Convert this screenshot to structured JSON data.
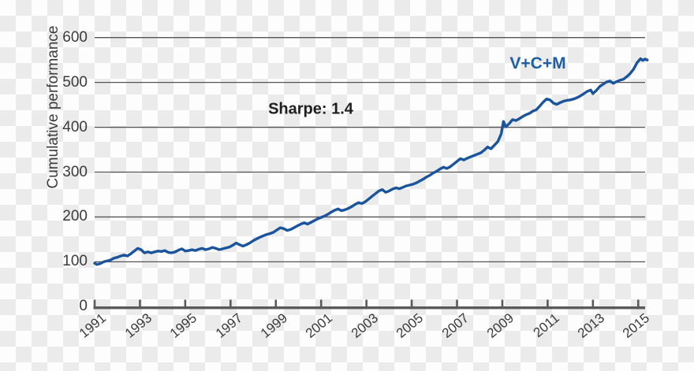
{
  "figure": {
    "ylabel": "Cumulative performance",
    "annotation": "Sharpe: 1.4",
    "series_label": "V+C+M"
  },
  "colors": {
    "line": "#1a549c",
    "series_label": "#1c5ea8",
    "grid": "#545454",
    "axis": "#5a5a5a",
    "text": "#3a3a3a",
    "checker_light": "#fdfdfd",
    "checker_gray": "#ebebeb"
  },
  "chart_data": {
    "type": "line",
    "title": "",
    "xlabel": "",
    "ylabel": "Cumulative performance",
    "annotation": {
      "text": "Sharpe: 1.4"
    },
    "legend_position": "top-right-inside",
    "grid": "horizontal-only",
    "xlim": [
      1991,
      2015.45
    ],
    "ylim": [
      0,
      600
    ],
    "x_ticks": [
      "1991",
      "1993",
      "1995",
      "1997",
      "1999",
      "2001",
      "2003",
      "2005",
      "2007",
      "2009",
      "2011",
      "2013",
      "2015"
    ],
    "x_tick_years": [
      1991,
      1993,
      1995,
      1997,
      1999,
      2001,
      2003,
      2005,
      2007,
      2009,
      2011,
      2013,
      2015
    ],
    "y_ticks": [
      "0",
      "100",
      "200",
      "300",
      "400",
      "500",
      "600"
    ],
    "y_tick_values": [
      0,
      100,
      200,
      300,
      400,
      500,
      600
    ],
    "gridline_values": [
      100,
      200,
      300,
      400,
      500,
      600
    ],
    "series": [
      {
        "name": "V+C+M",
        "color": "#1a549c",
        "points": [
          [
            1991.0,
            97
          ],
          [
            1991.1,
            94
          ],
          [
            1991.25,
            96
          ],
          [
            1991.4,
            100
          ],
          [
            1991.55,
            102
          ],
          [
            1991.7,
            104
          ],
          [
            1991.85,
            108
          ],
          [
            1992.0,
            110
          ],
          [
            1992.15,
            113
          ],
          [
            1992.3,
            115
          ],
          [
            1992.45,
            113
          ],
          [
            1992.6,
            118
          ],
          [
            1992.75,
            124
          ],
          [
            1992.9,
            130
          ],
          [
            1993.05,
            127
          ],
          [
            1993.2,
            120
          ],
          [
            1993.35,
            122
          ],
          [
            1993.5,
            120
          ],
          [
            1993.65,
            122
          ],
          [
            1993.8,
            124
          ],
          [
            1993.95,
            123
          ],
          [
            1994.1,
            125
          ],
          [
            1994.25,
            121
          ],
          [
            1994.4,
            120
          ],
          [
            1994.55,
            122
          ],
          [
            1994.7,
            126
          ],
          [
            1994.85,
            129
          ],
          [
            1995.0,
            124
          ],
          [
            1995.15,
            125
          ],
          [
            1995.3,
            127
          ],
          [
            1995.45,
            125
          ],
          [
            1995.6,
            128
          ],
          [
            1995.75,
            130
          ],
          [
            1995.9,
            127
          ],
          [
            1996.05,
            129
          ],
          [
            1996.2,
            132
          ],
          [
            1996.35,
            130
          ],
          [
            1996.5,
            127
          ],
          [
            1996.65,
            129
          ],
          [
            1996.8,
            131
          ],
          [
            1996.95,
            133
          ],
          [
            1997.1,
            137
          ],
          [
            1997.25,
            142
          ],
          [
            1997.4,
            138
          ],
          [
            1997.55,
            135
          ],
          [
            1997.7,
            138
          ],
          [
            1997.85,
            142
          ],
          [
            1998.0,
            147
          ],
          [
            1998.15,
            151
          ],
          [
            1998.3,
            155
          ],
          [
            1998.45,
            158
          ],
          [
            1998.6,
            161
          ],
          [
            1998.75,
            163
          ],
          [
            1998.9,
            166
          ],
          [
            1999.05,
            171
          ],
          [
            1999.2,
            176
          ],
          [
            1999.35,
            174
          ],
          [
            1999.5,
            170
          ],
          [
            1999.65,
            172
          ],
          [
            1999.8,
            176
          ],
          [
            1999.95,
            180
          ],
          [
            2000.1,
            184
          ],
          [
            2000.25,
            187
          ],
          [
            2000.4,
            184
          ],
          [
            2000.55,
            188
          ],
          [
            2000.7,
            192
          ],
          [
            2000.85,
            196
          ],
          [
            2001.0,
            199
          ],
          [
            2001.15,
            202
          ],
          [
            2001.3,
            206
          ],
          [
            2001.45,
            211
          ],
          [
            2001.6,
            215
          ],
          [
            2001.75,
            218
          ],
          [
            2001.9,
            214
          ],
          [
            2002.05,
            216
          ],
          [
            2002.2,
            219
          ],
          [
            2002.35,
            223
          ],
          [
            2002.5,
            228
          ],
          [
            2002.65,
            232
          ],
          [
            2002.8,
            230
          ],
          [
            2002.95,
            234
          ],
          [
            2003.1,
            240
          ],
          [
            2003.25,
            246
          ],
          [
            2003.4,
            252
          ],
          [
            2003.55,
            258
          ],
          [
            2003.7,
            261
          ],
          [
            2003.85,
            255
          ],
          [
            2004.0,
            258
          ],
          [
            2004.15,
            262
          ],
          [
            2004.3,
            265
          ],
          [
            2004.45,
            263
          ],
          [
            2004.6,
            266
          ],
          [
            2004.75,
            269
          ],
          [
            2004.9,
            271
          ],
          [
            2005.05,
            273
          ],
          [
            2005.2,
            276
          ],
          [
            2005.35,
            280
          ],
          [
            2005.5,
            284
          ],
          [
            2005.65,
            289
          ],
          [
            2005.8,
            293
          ],
          [
            2005.95,
            298
          ],
          [
            2006.1,
            302
          ],
          [
            2006.25,
            307
          ],
          [
            2006.4,
            311
          ],
          [
            2006.55,
            308
          ],
          [
            2006.7,
            312
          ],
          [
            2006.85,
            318
          ],
          [
            2007.0,
            324
          ],
          [
            2007.15,
            330
          ],
          [
            2007.3,
            327
          ],
          [
            2007.45,
            331
          ],
          [
            2007.6,
            334
          ],
          [
            2007.75,
            337
          ],
          [
            2007.9,
            340
          ],
          [
            2008.05,
            343
          ],
          [
            2008.2,
            349
          ],
          [
            2008.35,
            356
          ],
          [
            2008.5,
            352
          ],
          [
            2008.65,
            360
          ],
          [
            2008.8,
            368
          ],
          [
            2008.95,
            385
          ],
          [
            2009.05,
            413
          ],
          [
            2009.15,
            401
          ],
          [
            2009.3,
            408
          ],
          [
            2009.45,
            417
          ],
          [
            2009.6,
            415
          ],
          [
            2009.75,
            419
          ],
          [
            2009.9,
            424
          ],
          [
            2010.05,
            428
          ],
          [
            2010.2,
            431
          ],
          [
            2010.35,
            436
          ],
          [
            2010.5,
            439
          ],
          [
            2010.65,
            447
          ],
          [
            2010.8,
            456
          ],
          [
            2010.95,
            463
          ],
          [
            2011.1,
            461
          ],
          [
            2011.25,
            454
          ],
          [
            2011.4,
            451
          ],
          [
            2011.55,
            455
          ],
          [
            2011.7,
            458
          ],
          [
            2011.85,
            460
          ],
          [
            2012.0,
            461
          ],
          [
            2012.15,
            463
          ],
          [
            2012.3,
            466
          ],
          [
            2012.45,
            470
          ],
          [
            2012.6,
            475
          ],
          [
            2012.75,
            480
          ],
          [
            2012.9,
            483
          ],
          [
            2013.0,
            475
          ],
          [
            2013.15,
            482
          ],
          [
            2013.3,
            491
          ],
          [
            2013.45,
            496
          ],
          [
            2013.6,
            501
          ],
          [
            2013.75,
            503
          ],
          [
            2013.9,
            498
          ],
          [
            2014.05,
            502
          ],
          [
            2014.2,
            505
          ],
          [
            2014.35,
            507
          ],
          [
            2014.5,
            513
          ],
          [
            2014.65,
            520
          ],
          [
            2014.8,
            530
          ],
          [
            2014.95,
            544
          ],
          [
            2015.1,
            553
          ],
          [
            2015.2,
            549
          ],
          [
            2015.3,
            552
          ],
          [
            2015.4,
            550
          ]
        ]
      }
    ]
  }
}
